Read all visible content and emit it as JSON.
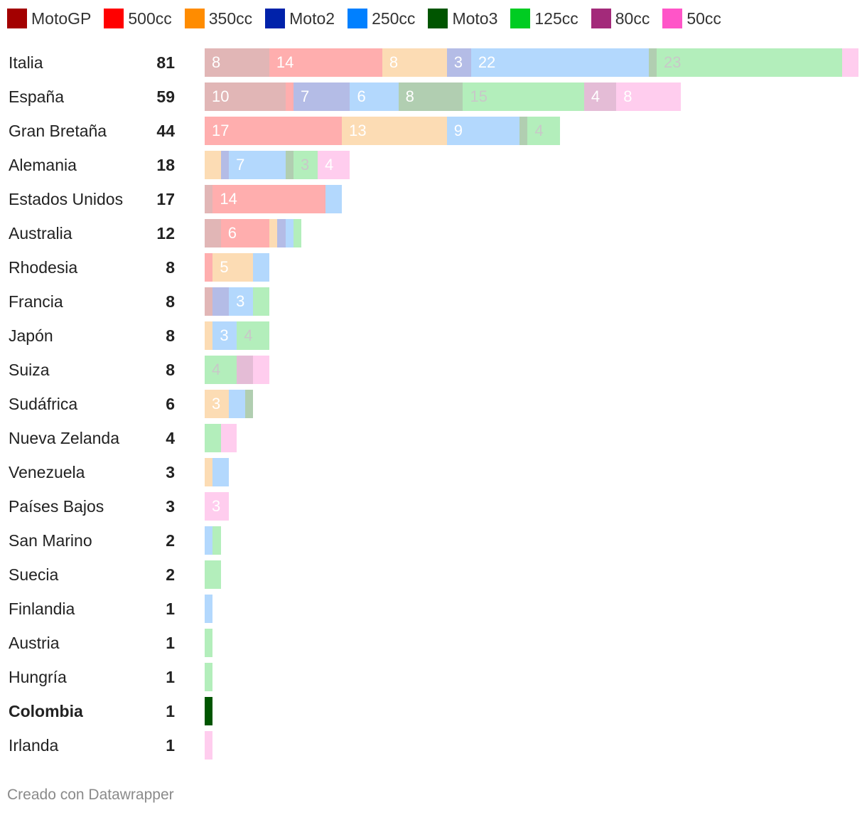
{
  "chart_data": {
    "type": "bar",
    "orientation": "horizontal",
    "stacked": true,
    "legend_position": "top",
    "xlim": [
      0,
      81
    ],
    "categories": [
      "Italia",
      "España",
      "Gran Bretaña",
      "Alemania",
      "Estados Unidos",
      "Australia",
      "Rhodesia",
      "Francia",
      "Japón",
      "Suiza",
      "Sudáfrica",
      "Nueva Zelanda",
      "Venezuela",
      "Países Bajos",
      "San Marino",
      "Suecia",
      "Finlandia",
      "Austria",
      "Hungría",
      "Colombia",
      "Irlanda"
    ],
    "totals": [
      81,
      59,
      44,
      18,
      17,
      12,
      8,
      8,
      8,
      8,
      6,
      4,
      3,
      3,
      2,
      2,
      1,
      1,
      1,
      1,
      1
    ],
    "highlight": [
      "Colombia"
    ],
    "series": [
      {
        "name": "MotoGP",
        "color": "#a30000",
        "faded": "#e1b6b6",
        "label_color": "#ffffff",
        "values": [
          8,
          10,
          0,
          0,
          1,
          2,
          0,
          1,
          0,
          0,
          0,
          0,
          0,
          0,
          0,
          0,
          0,
          0,
          0,
          0,
          0
        ]
      },
      {
        "name": "500cc",
        "color": "#ff0000",
        "faded": "#ffaeae",
        "label_color": "#ffffff",
        "values": [
          14,
          1,
          17,
          0,
          14,
          6,
          1,
          0,
          0,
          0,
          0,
          0,
          0,
          0,
          0,
          0,
          0,
          0,
          0,
          0,
          0
        ]
      },
      {
        "name": "350cc",
        "color": "#ff8c00",
        "faded": "#fcdcb4",
        "label_color": "#ffffff",
        "values": [
          8,
          0,
          13,
          2,
          0,
          1,
          5,
          0,
          1,
          0,
          3,
          0,
          1,
          0,
          0,
          0,
          0,
          0,
          0,
          0,
          0
        ]
      },
      {
        "name": "Moto2",
        "color": "#0022aa",
        "faded": "#b4bce6",
        "label_color": "#ffffff",
        "values": [
          3,
          7,
          0,
          1,
          0,
          1,
          0,
          2,
          0,
          0,
          0,
          0,
          0,
          0,
          0,
          0,
          0,
          0,
          0,
          0,
          0
        ]
      },
      {
        "name": "250cc",
        "color": "#0080ff",
        "faded": "#b3d8fd",
        "label_color": "#ffffff",
        "values": [
          22,
          6,
          9,
          7,
          2,
          1,
          2,
          3,
          3,
          0,
          2,
          0,
          2,
          0,
          1,
          0,
          1,
          0,
          0,
          0,
          0
        ]
      },
      {
        "name": "Moto3",
        "color": "#005500",
        "faded": "#b1ceb1",
        "label_color": "#ffffff",
        "values": [
          1,
          8,
          1,
          1,
          0,
          0,
          0,
          0,
          0,
          0,
          1,
          0,
          0,
          0,
          0,
          0,
          0,
          0,
          0,
          1,
          0
        ]
      },
      {
        "name": "125cc",
        "color": "#00cc22",
        "faded": "#b3eebb",
        "label_color": "#c8c8c8",
        "values": [
          23,
          15,
          4,
          3,
          0,
          1,
          0,
          2,
          4,
          4,
          0,
          2,
          0,
          0,
          1,
          2,
          0,
          1,
          1,
          0,
          0
        ]
      },
      {
        "name": "80cc",
        "color": "#a32a7a",
        "faded": "#e4bcd6",
        "label_color": "#ffffff",
        "values": [
          0,
          4,
          0,
          0,
          0,
          0,
          0,
          0,
          0,
          2,
          0,
          0,
          0,
          0,
          0,
          0,
          0,
          0,
          0,
          0,
          0
        ]
      },
      {
        "name": "50cc",
        "color": "#ff55c8",
        "faded": "#ffcdee",
        "label_color": "#ffffff",
        "values": [
          2,
          8,
          0,
          4,
          0,
          0,
          0,
          0,
          0,
          2,
          0,
          2,
          0,
          3,
          0,
          0,
          0,
          0,
          0,
          0,
          1
        ]
      }
    ]
  },
  "footer": "Creado con Datawrapper"
}
